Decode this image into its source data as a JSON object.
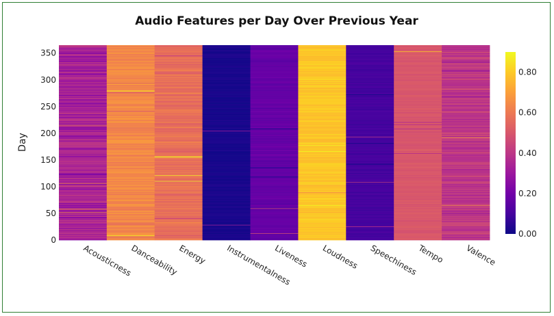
{
  "chart_data": {
    "type": "heatmap",
    "title": "Audio Features per Day Over Previous Year",
    "xlabel": "",
    "ylabel": "Day",
    "ylim": [
      0,
      365
    ],
    "yticks": [
      0,
      50,
      100,
      150,
      200,
      250,
      300,
      350
    ],
    "categories": [
      "Acousticness",
      "Danceability",
      "Energy",
      "Instrumentalness",
      "Liveness",
      "Loudness",
      "Speechiness",
      "Tempo",
      "Valence"
    ],
    "column_typical_values": {
      "Acousticness": 0.33,
      "Danceability": 0.64,
      "Energy": 0.57,
      "Instrumentalness": 0.02,
      "Liveness": 0.17,
      "Loudness": 0.79,
      "Speechiness": 0.1,
      "Tempo": 0.5,
      "Valence": 0.4
    },
    "colorscale": {
      "name": "Plasma",
      "range": [
        0,
        0.9
      ],
      "ticks": [
        "0.00",
        "0.20",
        "0.40",
        "0.60",
        "0.80"
      ],
      "tick_values": [
        0,
        0.2,
        0.4,
        0.6,
        0.8
      ],
      "stops": [
        "#0d0887",
        "#46039f",
        "#7201a8",
        "#9c179e",
        "#bd3786",
        "#d8576b",
        "#ed7953",
        "#fb9f3a",
        "#fdca26",
        "#f0f921"
      ]
    },
    "grid": false
  }
}
